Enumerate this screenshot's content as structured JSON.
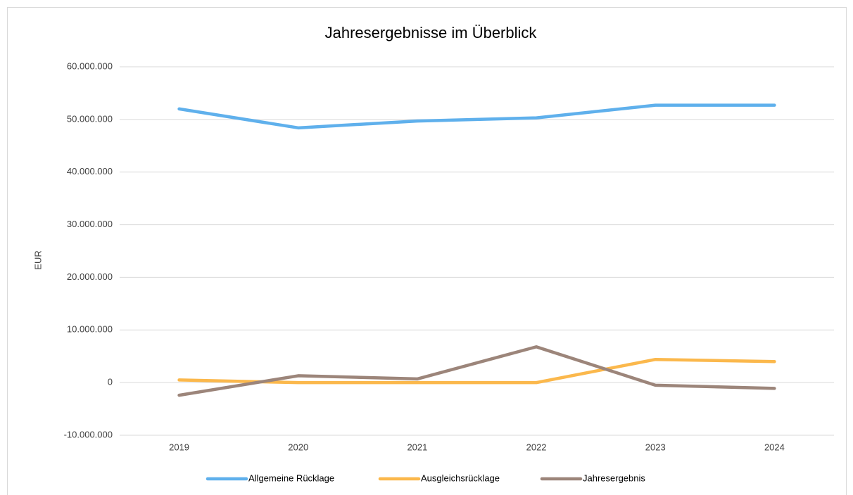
{
  "chart_data": {
    "type": "line",
    "title": "Jahresergebnisse im Überblick",
    "y_label": "EUR",
    "categories": [
      "2019",
      "2020",
      "2021",
      "2022",
      "2023",
      "2024"
    ],
    "series": [
      {
        "name": "Allgemeine Rücklage",
        "color": "#5fb0ec",
        "values": [
          52000000,
          48400000,
          49700000,
          50300000,
          52700000,
          52700000
        ]
      },
      {
        "name": "Ausgleichsrücklage",
        "color": "#fbb84c",
        "values": [
          500000,
          0,
          0,
          0,
          4400000,
          4000000
        ]
      },
      {
        "name": "Jahresergebnis",
        "color": "#9c857a",
        "values": [
          -2400000,
          1300000,
          700000,
          6800000,
          -500000,
          -1100000
        ]
      }
    ],
    "ylim": [
      -10000000,
      60000000
    ],
    "yticks": [
      {
        "value": -10000000,
        "label": "-10.000.000"
      },
      0,
      {
        "value": 10000000,
        "label": "10.000.000"
      },
      {
        "value": 20000000,
        "label": "20.000.000"
      },
      {
        "value": 30000000,
        "label": "30.000.000"
      },
      {
        "value": 40000000,
        "label": "40.000.000"
      },
      {
        "value": 50000000,
        "label": "50.000.000"
      },
      {
        "value": 60000000,
        "label": "60.000.000"
      }
    ],
    "grid": true,
    "legend": "bottom"
  }
}
